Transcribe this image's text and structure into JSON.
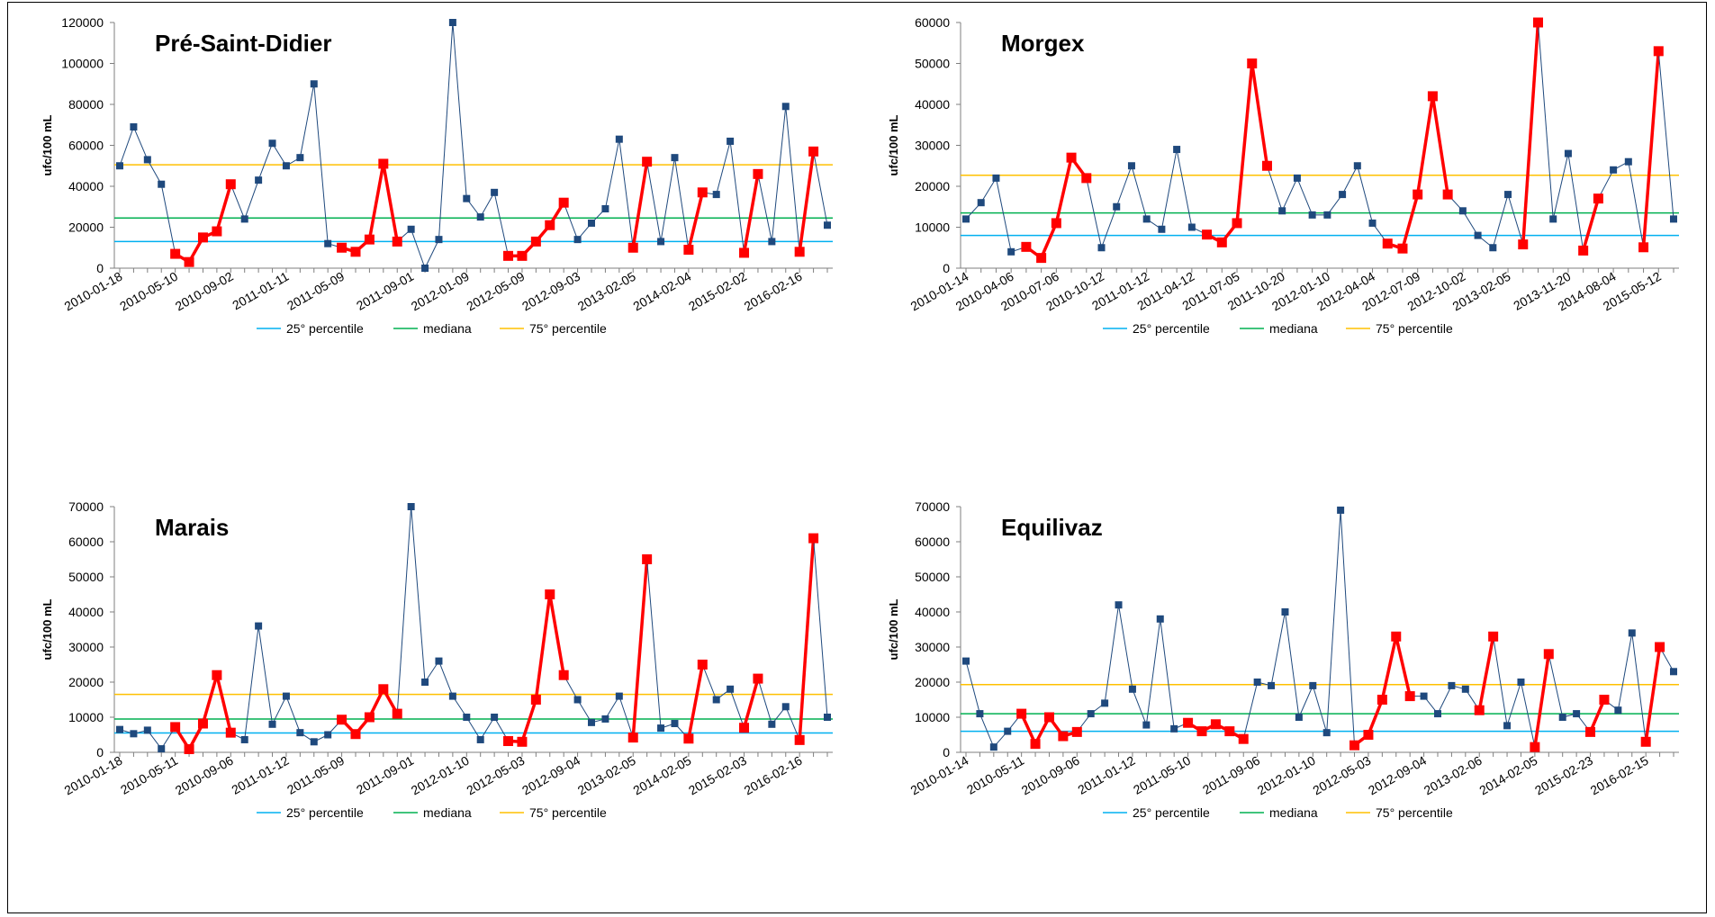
{
  "colors": {
    "normal": "#1f497d",
    "highlight": "#ff0000",
    "p25": "#00b0f0",
    "median": "#00b050",
    "p75": "#ffc000"
  },
  "legend": [
    "25° percentile",
    "mediana",
    "75° percentile"
  ],
  "chart_data": [
    {
      "type": "line",
      "title": "Pré-Saint-Didier",
      "ylabel": "ufc/100 mL",
      "ylim": [
        0,
        120000
      ],
      "yticks": [
        0,
        20000,
        40000,
        60000,
        80000,
        100000,
        120000
      ],
      "xtick_labels": [
        "2010-01-18",
        "2010-05-10",
        "2010-09-02",
        "2011-01-11",
        "2011-05-09",
        "2011-09-01",
        "2012-01-09",
        "2012-05-09",
        "2012-09-03",
        "2013-02-05",
        "2014-02-04",
        "2015-02-02",
        "2016-02-16"
      ],
      "values": [
        50000,
        69000,
        53000,
        41000,
        7000,
        3000,
        15000,
        18000,
        41000,
        24000,
        43000,
        61000,
        50000,
        54000,
        90000,
        12000,
        10000,
        8000,
        14000,
        51000,
        13000,
        19000,
        0,
        14000,
        120000,
        34000,
        25000,
        37000,
        6000,
        6000,
        13000,
        21000,
        32000,
        14000,
        22000,
        29000,
        63000,
        10000,
        52000,
        13000,
        54000,
        9000,
        37000,
        36000,
        62000,
        7500,
        46000,
        13000,
        79000,
        8000,
        57000,
        21000
      ],
      "highlight_runs": [
        [
          4,
          8
        ],
        [
          16,
          20
        ],
        [
          28,
          32
        ],
        [
          37,
          38
        ],
        [
          41,
          42
        ],
        [
          45,
          46
        ],
        [
          49,
          50
        ]
      ],
      "p25": 13000,
      "median": 24500,
      "p75": 50500
    },
    {
      "type": "line",
      "title": "Morgex",
      "ylabel": "ufc/100 mL",
      "ylim": [
        0,
        60000
      ],
      "yticks": [
        0,
        10000,
        20000,
        30000,
        40000,
        50000,
        60000
      ],
      "xtick_labels": [
        "2010-01-14",
        "2010-04-06",
        "2010-07-06",
        "2010-10-12",
        "2011-01-12",
        "2011-04-12",
        "2011-07-05",
        "2011-10-20",
        "2012-01-10",
        "2012-04-04",
        "2012-07-09",
        "2012-10-02",
        "2013-02-05",
        "2013-11-20",
        "2014-08-04",
        "2015-05-12"
      ],
      "values": [
        12000,
        16000,
        22000,
        4000,
        5200,
        2500,
        11000,
        27000,
        22000,
        5000,
        15000,
        25000,
        12000,
        9500,
        29000,
        10000,
        8200,
        6300,
        11000,
        50000,
        25000,
        14000,
        22000,
        13000,
        13000,
        18000,
        25000,
        11000,
        6000,
        4800,
        18000,
        42000,
        18000,
        14000,
        8000,
        5000,
        18000,
        5800,
        60000,
        12000,
        28000,
        4300,
        17000,
        24000,
        26000,
        5100,
        53000,
        12000
      ],
      "highlight_runs": [
        [
          4,
          8
        ],
        [
          16,
          20
        ],
        [
          28,
          32
        ],
        [
          37,
          38
        ],
        [
          41,
          42
        ],
        [
          45,
          46
        ]
      ],
      "p25": 8000,
      "median": 13500,
      "p75": 22700
    },
    {
      "type": "line",
      "title": "Marais",
      "ylabel": "ufc/100 mL",
      "ylim": [
        0,
        70000
      ],
      "yticks": [
        0,
        10000,
        20000,
        30000,
        40000,
        50000,
        60000,
        70000
      ],
      "xtick_labels": [
        "2010-01-18",
        "2010-05-11",
        "2010-09-06",
        "2011-01-12",
        "2011-05-09",
        "2011-09-01",
        "2012-01-10",
        "2012-05-03",
        "2012-09-04",
        "2013-02-05",
        "2014-02-05",
        "2015-02-03",
        "2016-02-16"
      ],
      "values": [
        6500,
        5300,
        6300,
        1000,
        7200,
        900,
        8200,
        22000,
        5600,
        3600,
        36000,
        8000,
        16000,
        5600,
        3000,
        5000,
        9300,
        5200,
        10000,
        18000,
        11000,
        70000,
        20000,
        26000,
        16000,
        10000,
        3600,
        10000,
        3200,
        3000,
        15000,
        45000,
        22000,
        15000,
        8500,
        9500,
        16000,
        4200,
        55000,
        6900,
        8200,
        3900,
        25000,
        15000,
        18000,
        7000,
        21000,
        8000,
        13000,
        3500,
        61000,
        10000
      ],
      "highlight_runs": [
        [
          4,
          8
        ],
        [
          16,
          20
        ],
        [
          28,
          32
        ],
        [
          37,
          38
        ],
        [
          41,
          42
        ],
        [
          45,
          46
        ],
        [
          49,
          50
        ]
      ],
      "p25": 5500,
      "median": 9500,
      "p75": 16500
    },
    {
      "type": "line",
      "title": "Equilivaz",
      "ylabel": "ufc/100 mL",
      "ylim": [
        0,
        70000
      ],
      "yticks": [
        0,
        10000,
        20000,
        30000,
        40000,
        50000,
        60000,
        70000
      ],
      "xtick_labels": [
        "2010-01-14",
        "2010-05-11",
        "2010-09-06",
        "2011-01-12",
        "2011-05-10",
        "2011-09-06",
        "2012-01-10",
        "2012-05-03",
        "2012-09-04",
        "2013-02-06",
        "2014-02-05",
        "2015-02-23",
        "2016-02-15"
      ],
      "values": [
        26000,
        11000,
        1500,
        6000,
        11000,
        2400,
        10000,
        4600,
        5800,
        11000,
        14000,
        42000,
        18000,
        7800,
        38000,
        6700,
        8400,
        6000,
        8000,
        6000,
        3800,
        20000,
        19000,
        40000,
        10000,
        19000,
        5600,
        69000,
        2000,
        5000,
        15000,
        33000,
        16000,
        16000,
        11000,
        19000,
        18000,
        12000,
        33000,
        7600,
        20000,
        1500,
        28000,
        10000,
        11000,
        5800,
        15000,
        12000,
        34000,
        3000,
        30000,
        23000
      ],
      "highlight_runs": [
        [
          4,
          8
        ],
        [
          16,
          20
        ],
        [
          28,
          32
        ],
        [
          37,
          38
        ],
        [
          41,
          42
        ],
        [
          45,
          46
        ],
        [
          49,
          50
        ]
      ],
      "p25": 6000,
      "median": 11000,
      "p75": 19300
    }
  ]
}
